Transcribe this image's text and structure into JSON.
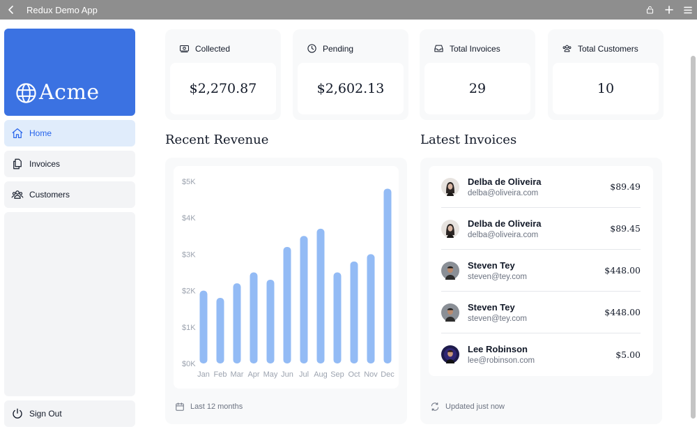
{
  "app": {
    "title": "Redux Demo App"
  },
  "sidebar": {
    "logo": "Acme",
    "items": [
      {
        "label": "Home",
        "icon": "home-icon",
        "active": true
      },
      {
        "label": "Invoices",
        "icon": "documents-icon",
        "active": false
      },
      {
        "label": "Customers",
        "icon": "users-icon",
        "active": false
      }
    ],
    "signout": "Sign Out"
  },
  "cards": [
    {
      "title": "Collected",
      "value": "$2,270.87",
      "icon": "banknotes-icon"
    },
    {
      "title": "Pending",
      "value": "$2,602.13",
      "icon": "clock-icon"
    },
    {
      "title": "Total Invoices",
      "value": "29",
      "icon": "inbox-icon"
    },
    {
      "title": "Total Customers",
      "value": "10",
      "icon": "users-icon"
    }
  ],
  "revenue": {
    "title": "Recent Revenue",
    "footer": "Last 12 months"
  },
  "chart_data": {
    "type": "bar",
    "categories": [
      "Jan",
      "Feb",
      "Mar",
      "Apr",
      "May",
      "Jun",
      "Jul",
      "Aug",
      "Sep",
      "Oct",
      "Nov",
      "Dec"
    ],
    "values": [
      2000,
      1800,
      2200,
      2500,
      2300,
      3200,
      3500,
      3700,
      2500,
      2800,
      3000,
      4800
    ],
    "ylim": [
      0,
      5000
    ],
    "yticks": [
      "$0K",
      "$1K",
      "$2K",
      "$3K",
      "$4K",
      "$5K"
    ],
    "grid": false,
    "bar_color": "#93bbf5"
  },
  "invoices": {
    "title": "Latest Invoices",
    "footer": "Updated just now",
    "rows": [
      {
        "name": "Delba de Oliveira",
        "email": "delba@oliveira.com",
        "amount": "$89.49",
        "avatar_bg": "#e7e3df"
      },
      {
        "name": "Delba de Oliveira",
        "email": "delba@oliveira.com",
        "amount": "$89.45",
        "avatar_bg": "#e7e3df"
      },
      {
        "name": "Steven Tey",
        "email": "steven@tey.com",
        "amount": "$448.00",
        "avatar_bg": "#6b7280"
      },
      {
        "name": "Steven Tey",
        "email": "steven@tey.com",
        "amount": "$448.00",
        "avatar_bg": "#6b7280"
      },
      {
        "name": "Lee Robinson",
        "email": "lee@robinson.com",
        "amount": "$5.00",
        "avatar_bg": "#1e1b4b"
      }
    ]
  },
  "colors": {
    "accent": "#3b72e2",
    "active_bg": "#e0ecfb",
    "active_text": "#2563eb",
    "panel_bg": "#f8f9fa"
  }
}
